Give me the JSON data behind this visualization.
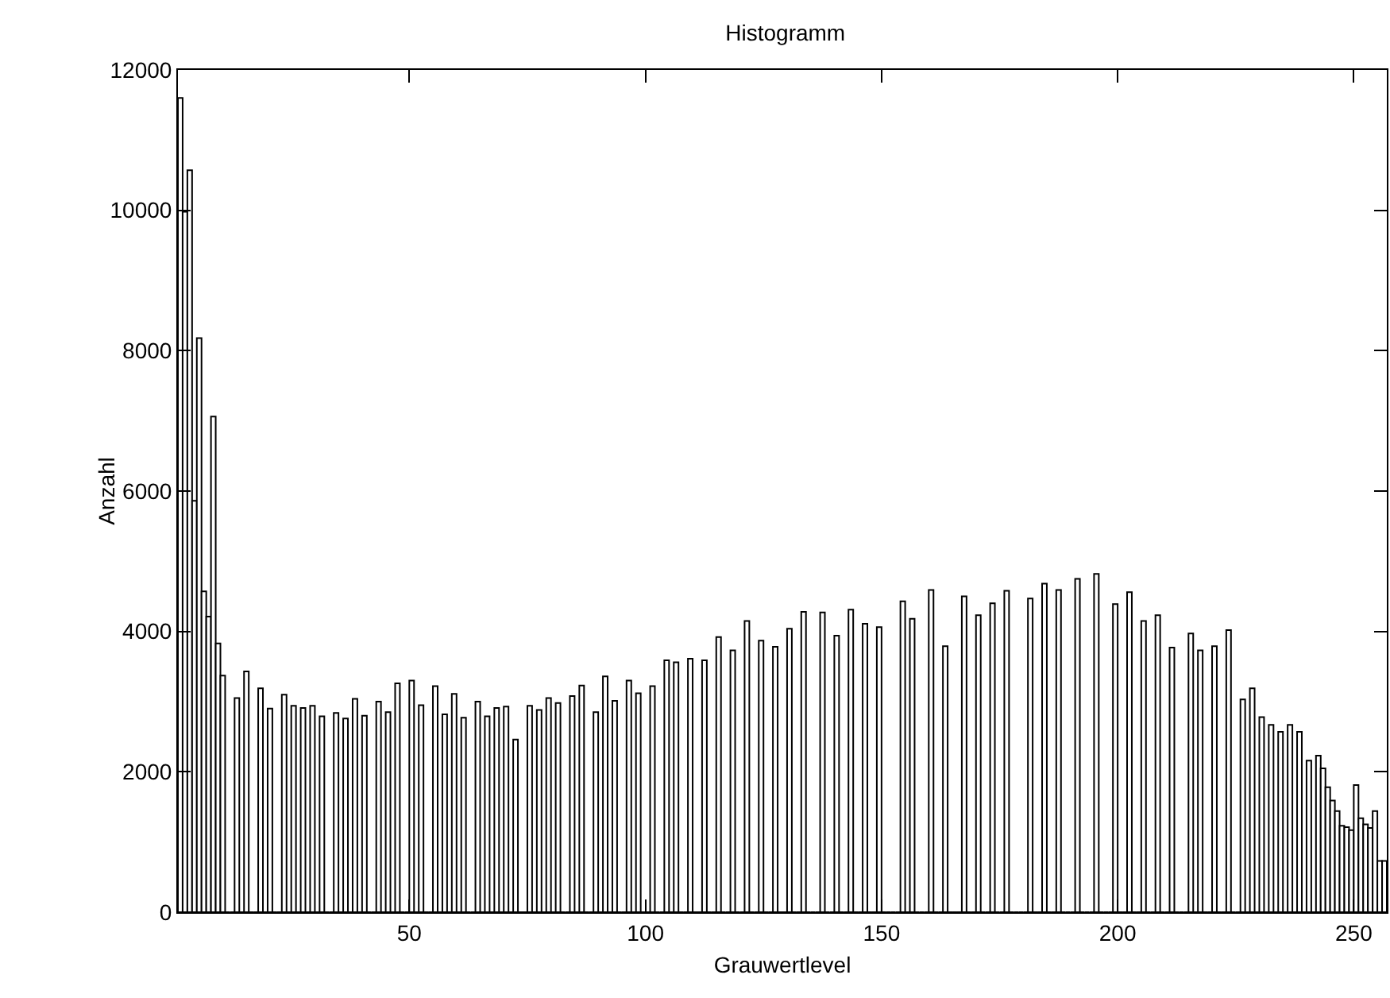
{
  "chart_data": {
    "type": "histogram",
    "title": "Histogramm",
    "xlabel": "Grauwertlevel",
    "ylabel": "Anzahl",
    "bins": [
      1,
      2,
      3,
      4,
      5,
      6,
      7,
      8,
      9,
      10,
      11,
      12,
      13,
      14,
      15,
      16,
      17,
      18,
      19,
      20,
      21,
      22,
      23,
      24,
      25,
      26,
      27,
      28,
      29,
      30,
      31,
      32,
      33,
      34,
      35,
      36,
      37,
      38,
      39,
      40,
      41,
      42,
      43,
      44,
      45,
      46,
      47,
      48,
      49,
      50,
      51,
      52,
      53,
      54,
      55,
      56,
      57,
      58,
      59,
      60,
      61,
      62,
      63,
      64,
      65,
      66,
      67,
      68,
      69,
      70,
      71,
      72,
      73,
      74,
      75,
      76,
      77,
      78,
      79,
      80,
      81,
      82,
      83,
      84,
      85,
      86,
      87,
      88,
      89,
      90,
      91,
      92,
      93,
      94,
      95,
      96,
      97,
      98,
      99,
      100,
      101,
      102,
      103,
      104,
      105,
      106,
      107,
      108,
      109,
      110,
      111,
      112,
      113,
      114,
      115,
      116,
      117,
      118,
      119,
      120,
      121,
      122,
      123,
      124,
      125,
      126,
      127,
      128,
      129,
      130,
      131,
      132,
      133,
      134,
      135,
      136,
      137,
      138,
      139,
      140,
      141,
      142,
      143,
      144,
      145,
      146,
      147,
      148,
      149,
      150,
      151,
      152,
      153,
      154,
      155,
      156,
      157,
      158,
      159,
      160,
      161,
      162,
      163,
      164,
      165,
      166,
      167,
      168,
      169,
      170,
      171,
      172,
      173,
      174,
      175,
      176,
      177,
      178,
      179,
      180,
      181,
      182,
      183,
      184,
      185,
      186,
      187,
      188,
      189,
      190,
      191,
      192,
      193,
      194,
      195,
      196,
      197,
      198,
      199,
      200,
      201,
      202,
      203,
      204,
      205,
      206,
      207,
      208,
      209,
      210,
      211,
      212,
      213,
      214,
      215,
      216,
      217,
      218,
      219,
      220,
      221,
      222,
      223,
      224,
      225,
      226,
      227,
      228,
      229,
      230,
      231,
      232,
      233,
      234,
      235,
      236,
      237,
      238,
      239,
      240,
      241,
      242,
      243,
      244,
      245,
      246,
      247,
      248,
      249,
      250,
      251,
      252,
      253,
      254,
      255,
      256,
      257
    ],
    "values": [
      11600,
      9980,
      10570,
      5860,
      8180,
      4570,
      4210,
      7060,
      3830,
      3370,
      0,
      0,
      3050,
      0,
      3430,
      0,
      0,
      3190,
      0,
      2900,
      0,
      0,
      3100,
      0,
      2940,
      0,
      2910,
      0,
      2940,
      0,
      2790,
      0,
      0,
      2840,
      0,
      2760,
      0,
      3040,
      0,
      2800,
      0,
      0,
      3000,
      0,
      2850,
      0,
      3260,
      0,
      0,
      3300,
      0,
      2950,
      0,
      0,
      3220,
      0,
      2820,
      0,
      3110,
      0,
      2770,
      0,
      0,
      3000,
      0,
      2790,
      0,
      2910,
      0,
      2930,
      0,
      2460,
      0,
      0,
      2940,
      0,
      2880,
      0,
      3050,
      0,
      2980,
      0,
      0,
      3080,
      0,
      3230,
      0,
      0,
      2850,
      0,
      3360,
      0,
      3010,
      0,
      0,
      3300,
      0,
      3120,
      0,
      0,
      3220,
      0,
      0,
      3590,
      0,
      3560,
      0,
      0,
      3610,
      0,
      0,
      3590,
      0,
      0,
      3920,
      0,
      0,
      3730,
      0,
      0,
      4150,
      0,
      0,
      3870,
      0,
      0,
      3780,
      0,
      0,
      4040,
      0,
      0,
      4280,
      0,
      0,
      0,
      4270,
      0,
      0,
      3940,
      0,
      0,
      4310,
      0,
      0,
      4110,
      0,
      0,
      4060,
      0,
      0,
      0,
      0,
      4430,
      0,
      4180,
      0,
      0,
      0,
      4590,
      0,
      0,
      3790,
      0,
      0,
      0,
      4500,
      0,
      0,
      4230,
      0,
      0,
      4400,
      0,
      0,
      4580,
      0,
      0,
      0,
      0,
      4470,
      0,
      0,
      4680,
      0,
      0,
      4590,
      0,
      0,
      0,
      4750,
      0,
      0,
      0,
      4820,
      0,
      0,
      0,
      4390,
      0,
      0,
      4560,
      0,
      0,
      4150,
      0,
      0,
      4230,
      0,
      0,
      3770,
      0,
      0,
      0,
      3970,
      0,
      3730,
      0,
      0,
      3790,
      0,
      0,
      4020,
      0,
      0,
      3030,
      0,
      3190,
      0,
      2780,
      0,
      2670,
      0,
      2570,
      0,
      2670,
      0,
      2570,
      0,
      2160,
      0,
      2230,
      2050,
      1780,
      1590,
      1440,
      1230,
      1210,
      1170,
      1810,
      1340,
      1250,
      1200,
      1440,
      730,
      730
    ],
    "color": "#ffffff",
    "xlim": [
      1,
      257
    ],
    "xticks": [
      50,
      100,
      150,
      200,
      250
    ],
    "ylim": [
      0,
      12000
    ],
    "yticks": [
      0,
      2000,
      4000,
      6000,
      8000,
      10000,
      12000
    ],
    "grid": false,
    "legend": false
  }
}
